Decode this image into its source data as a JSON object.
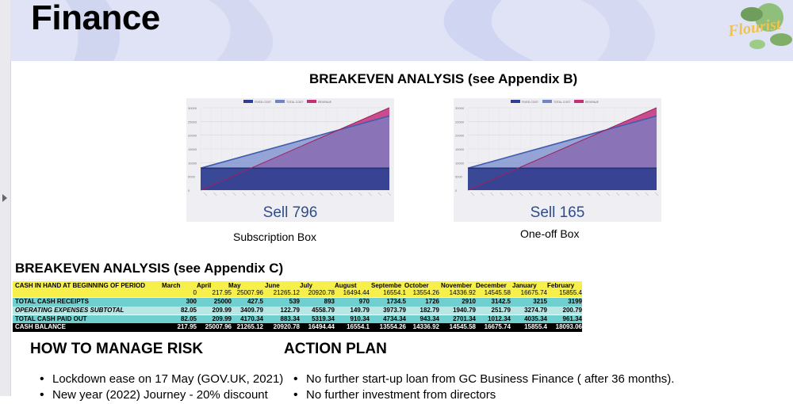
{
  "header": {
    "title": "Finance",
    "logo_text": "Flourist"
  },
  "breakeven_b": {
    "title": "BREAKEVEN ANALYSIS (see Appendix B)",
    "charts": [
      {
        "sell_label": "Sell 796",
        "caption": "Subscription Box"
      },
      {
        "sell_label": "Sell 165",
        "caption": "One-off Box"
      }
    ],
    "legend": [
      "FIXED COST",
      "TOTAL COST",
      "REVENUE"
    ],
    "colors": {
      "fixed": "#2f3f8f",
      "total": "#6f84c9",
      "revenue": "#c2307a"
    }
  },
  "chart_data": [
    {
      "type": "area",
      "series": [
        {
          "name": "FIXED COST",
          "values": [
            8000,
            8000
          ]
        },
        {
          "name": "TOTAL COST",
          "values": [
            8000,
            27000
          ]
        },
        {
          "name": "REVENUE",
          "values": [
            0,
            30000
          ]
        }
      ],
      "ylim": [
        0,
        30000
      ],
      "yticks": [
        "30000",
        "25000",
        "20000",
        "15000",
        "10000",
        "5000",
        "0"
      ]
    },
    {
      "type": "area",
      "series": [
        {
          "name": "FIXED COST",
          "values": [
            8000,
            8000
          ]
        },
        {
          "name": "TOTAL COST",
          "values": [
            8000,
            27000
          ]
        },
        {
          "name": "REVENUE",
          "values": [
            0,
            30000
          ]
        }
      ],
      "ylim": [
        0,
        30000
      ],
      "yticks": [
        "30000",
        "25000",
        "20000",
        "15000",
        "10000",
        "5000",
        "0"
      ]
    }
  ],
  "breakeven_c": {
    "title": "BREAKEVEN ANALYSIS (see Appendix C)",
    "months": [
      "March",
      "April",
      "May",
      "June",
      "July",
      "August",
      "Septembe",
      "October",
      "November",
      "December",
      "January",
      "February"
    ],
    "rows": [
      {
        "label": "CASH IN HAND AT BEGINNING OF PERIOD",
        "values": [
          "0",
          "217.95",
          "25007.96",
          "21265.12",
          "20920.78",
          "16494.44",
          "16554.1",
          "13554.26",
          "14336.92",
          "14545.58",
          "16675.74",
          "15855.4"
        ]
      },
      {
        "label": "TOTAL CASH RECEIPTS",
        "values": [
          "300",
          "25000",
          "427.5",
          "539",
          "893",
          "970",
          "1734.5",
          "1726",
          "2910",
          "3142.5",
          "3215",
          "3199"
        ]
      },
      {
        "label": "OPERATING EXPENSES SUBTOTAL",
        "values": [
          "82.05",
          "209.99",
          "3409.79",
          "122.79",
          "4558.79",
          "149.79",
          "3973.79",
          "182.79",
          "1940.79",
          "251.79",
          "3274.79",
          "200.79"
        ]
      },
      {
        "label": "TOTAL CASH PAID OUT",
        "values": [
          "82.05",
          "209.99",
          "4170.34",
          "883.34",
          "5319.34",
          "910.34",
          "4734.34",
          "943.34",
          "2701.34",
          "1012.34",
          "4035.34",
          "961.34"
        ]
      },
      {
        "label": "CASH BALANCE",
        "values": [
          "217.95",
          "25007.96",
          "21265.12",
          "20920.78",
          "16494.44",
          "16554.1",
          "13554.26",
          "14336.92",
          "14545.58",
          "16675.74",
          "15855.4",
          "18093.06"
        ]
      }
    ],
    "colors": {
      "header": "#f7f04a",
      "receipts": "#6fd0cf",
      "expenses": "#b9e5e4",
      "paid": "#6fd0cf",
      "balance": "#000000"
    }
  },
  "risk": {
    "title": "HOW TO MANAGE RISK",
    "items": [
      "Lockdown ease on 17 May (GOV.UK, 2021)",
      "New year (2022) Journey - 20% discount"
    ]
  },
  "action": {
    "title": "ACTION PLAN",
    "items": [
      "No further start-up loan from GC Business Finance  ( after 36 months).",
      "No further investment from directors"
    ]
  }
}
